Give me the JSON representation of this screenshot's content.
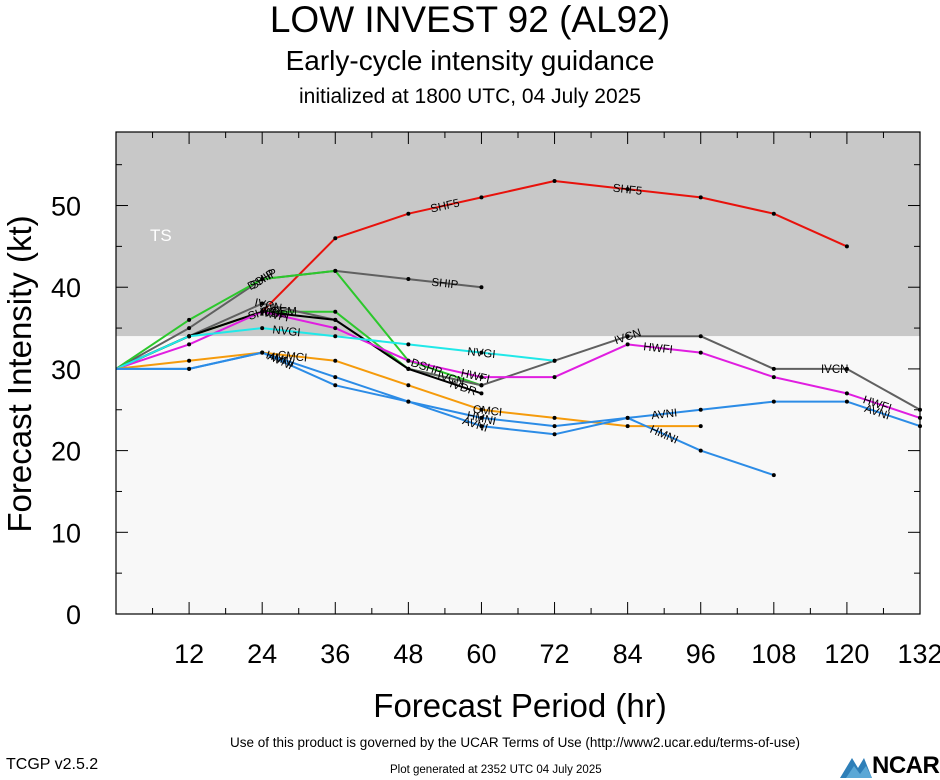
{
  "header": {
    "title": "LOW INVEST 92 (AL92)",
    "subtitle": "Early-cycle intensity guidance",
    "initialized": "initialized at 1800 UTC, 04 July 2025"
  },
  "footer": {
    "terms": "Use of this product is governed by the UCAR Terms of Use (http://www2.ucar.edu/terms-of-use)",
    "version": "TCGP v2.5.2",
    "generated": "Plot generated at 2352 UTC   04 July 2025",
    "logo": "NCAR"
  },
  "chart_data": {
    "type": "line",
    "xlabel": "Forecast Period (hr)",
    "ylabel": "Forecast Intensity (kt)",
    "xlim": [
      0,
      132
    ],
    "ylim": [
      0,
      59
    ],
    "xticks": [
      12,
      24,
      36,
      48,
      60,
      72,
      84,
      96,
      108,
      120,
      132
    ],
    "yticks": [
      0,
      10,
      20,
      30,
      40,
      50
    ],
    "bands": [
      {
        "label": "TS",
        "from": 34,
        "to": 59,
        "color": "#c8c8c8"
      },
      {
        "label": "",
        "from": 0,
        "to": 34,
        "color": "#f8f8f8"
      }
    ],
    "series": [
      {
        "name": "SHF5",
        "color": "#e8120c",
        "x": [
          0,
          12,
          24,
          36,
          48,
          60,
          72,
          84,
          96,
          108,
          120
        ],
        "y": [
          30,
          34,
          37,
          46,
          49,
          51,
          53,
          52,
          51,
          49,
          45
        ],
        "labels_at": [
          24,
          54,
          84
        ]
      },
      {
        "name": "SHIP",
        "color": "#606060",
        "x": [
          0,
          12,
          24,
          36,
          48,
          60
        ],
        "y": [
          30,
          35,
          41,
          42,
          41,
          40
        ],
        "labels_at": [
          24,
          54
        ]
      },
      {
        "name": "DSHP",
        "color": "#2cc82c",
        "x": [
          0,
          12,
          24,
          36,
          48,
          60
        ],
        "y": [
          30,
          36,
          41,
          42,
          31,
          28
        ],
        "labels_at": [
          24,
          51
        ]
      },
      {
        "name": "LGEM",
        "color": "#2cc82c",
        "x": [
          0,
          12,
          24,
          36,
          48,
          60
        ],
        "y": [
          30,
          34,
          37,
          37,
          30,
          28
        ],
        "labels_at": [
          27
        ]
      },
      {
        "name": "IVCN",
        "color": "#606060",
        "x": [
          0,
          12,
          24,
          36,
          48,
          60,
          72,
          84,
          96,
          108,
          120,
          132
        ],
        "y": [
          30,
          34,
          38,
          36,
          30,
          28,
          31,
          34,
          34,
          30,
          30,
          25
        ],
        "labels_at": [
          25,
          55,
          84,
          118
        ]
      },
      {
        "name": "IVDR",
        "color": "#000000",
        "x": [
          0,
          12,
          24,
          36,
          48,
          60
        ],
        "y": [
          30,
          34,
          37,
          36,
          30,
          27
        ],
        "labels_at": [
          26,
          57
        ]
      },
      {
        "name": "HWFI",
        "color": "#e01ee0",
        "x": [
          0,
          12,
          24,
          36,
          48,
          60,
          72,
          84,
          96,
          108,
          120,
          132
        ],
        "y": [
          30,
          33,
          37,
          35,
          31,
          29,
          29,
          33,
          32,
          29,
          27,
          24
        ],
        "labels_at": [
          26,
          59,
          89,
          125
        ]
      },
      {
        "name": "NVGI",
        "color": "#20e8e8",
        "x": [
          0,
          12,
          24,
          36,
          48,
          60,
          72
        ],
        "y": [
          30,
          34,
          35,
          34,
          33,
          32,
          31
        ],
        "labels_at": [
          28,
          60
        ]
      },
      {
        "name": "CMCI",
        "color": "#f59b0c",
        "x": [
          0,
          12,
          24,
          36,
          48,
          60,
          72,
          84,
          96
        ],
        "y": [
          30,
          31,
          32,
          31,
          28,
          25,
          24,
          23,
          23
        ],
        "labels_at": [
          29,
          61
        ]
      },
      {
        "name": "HMNI",
        "color": "#2c8ce6",
        "x": [
          0,
          12,
          24,
          36,
          48,
          60,
          72,
          84,
          96,
          108
        ],
        "y": [
          30,
          30,
          32,
          29,
          26,
          24,
          23,
          24,
          20,
          17
        ],
        "labels_at": [
          27,
          60,
          90
        ]
      },
      {
        "name": "AVNI",
        "color": "#2c8ce6",
        "x": [
          0,
          12,
          24,
          36,
          48,
          60,
          72,
          84,
          96,
          108,
          120,
          132
        ],
        "y": [
          30,
          30,
          32,
          28,
          26,
          23,
          22,
          24,
          25,
          26,
          26,
          23
        ],
        "labels_at": [
          27,
          59,
          90,
          125
        ]
      }
    ]
  }
}
